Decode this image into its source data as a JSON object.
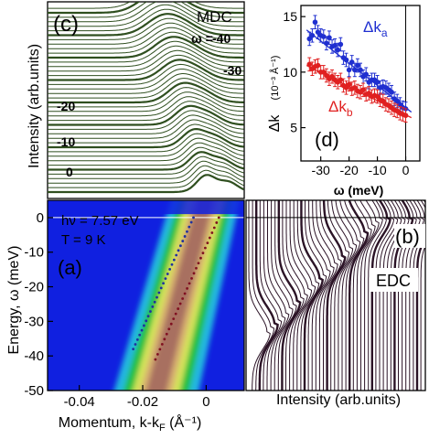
{
  "colors": {
    "mdc_line": "#2f4f1f",
    "edc_line": "#2b1326",
    "dk_a": "#1f2fd0",
    "dk_b": "#e02020",
    "map_peak": "#a87060",
    "map_high": "#d8b070",
    "map_mid": "#d6e45a",
    "map_low": "#20c040",
    "map_edge": "#20b8e0",
    "map_bg": "#1020e0",
    "dots_a": "#2030a0",
    "dots_b": "#801020"
  },
  "chart_data": [
    {
      "id": "c",
      "type": "line",
      "panel_label": "(c)",
      "annotation": "MDC",
      "ylabel": "Intensity (arb.units)",
      "omega_param": "ω =",
      "omega_labels": [
        "-40",
        "-30",
        "-20",
        "-10",
        "0"
      ],
      "curve_count": 42,
      "description_of_x": "Momentum k-kF (shared with panel a)"
    },
    {
      "id": "d",
      "type": "scatter",
      "panel_label": "(d)",
      "xlabel": "ω (meV)",
      "ylabel_main": "Δk",
      "ylabel_unit": "(10⁻³ Å⁻¹)",
      "xlim": [
        -37,
        5
      ],
      "ylim": [
        2,
        16
      ],
      "xticks": [
        -30,
        -20,
        -10,
        0
      ],
      "yticks": [
        5,
        10,
        15
      ],
      "series": [
        {
          "name": "Δka",
          "name_main": "Δk",
          "name_sub": "a",
          "x": [
            -34,
            -33,
            -32,
            -31,
            -30,
            -29,
            -28,
            -27,
            -26,
            -25,
            -24,
            -23,
            -22,
            -21,
            -20,
            -19,
            -18,
            -17,
            -16,
            -15,
            -14,
            -13,
            -12,
            -11,
            -10,
            -9,
            -8,
            -7,
            -6,
            -5,
            -4,
            -3,
            -2,
            -1,
            0
          ],
          "y": [
            13.0,
            13.3,
            14.5,
            13.6,
            13.3,
            13.2,
            12.6,
            13.1,
            12.3,
            12.4,
            12.0,
            12.5,
            11.3,
            11.1,
            10.2,
            10.9,
            10.2,
            10.6,
            10.2,
            9.6,
            9.8,
            9.1,
            9.3,
            9.3,
            9.1,
            8.6,
            8.7,
            8.6,
            8.4,
            8.2,
            7.6,
            7.4,
            7.1,
            6.8,
            6.7
          ],
          "fit": [
            [
              -35,
              13.8
            ],
            [
              2,
              6.4
            ]
          ]
        },
        {
          "name": "Δkb",
          "name_main": "Δk",
          "name_sub": "b",
          "x": [
            -34,
            -33,
            -32,
            -31,
            -30,
            -29,
            -28,
            -27,
            -26,
            -25,
            -24,
            -23,
            -22,
            -21,
            -20,
            -19,
            -18,
            -17,
            -16,
            -15,
            -14,
            -13,
            -12,
            -11,
            -10,
            -9,
            -8,
            -7,
            -6,
            -5,
            -4,
            -3,
            -2,
            -1,
            0
          ],
          "y": [
            10.7,
            10.3,
            10.5,
            10.6,
            10.0,
            10.0,
            9.7,
            9.4,
            9.6,
            9.3,
            9.1,
            9.3,
            8.8,
            8.6,
            8.9,
            8.5,
            8.6,
            8.3,
            8.2,
            8.4,
            8.0,
            8.1,
            7.8,
            7.9,
            7.8,
            7.5,
            7.4,
            7.1,
            7.0,
            6.8,
            6.6,
            6.5,
            6.3,
            6.2,
            6.1
          ],
          "fit": [
            [
              -35,
              10.6
            ],
            [
              2,
              5.9
            ]
          ]
        }
      ]
    },
    {
      "id": "a",
      "type": "heatmap",
      "panel_label": "(a)",
      "photon": "hν = 7.57 eV",
      "temperature": "T = 9 K",
      "xlabel_main": "Momentum, k-k",
      "xlabel_sub": "F",
      "xlabel_unit": " (Å⁻¹)",
      "ylabel": "Energy, ω  (meV)",
      "xlim": [
        -0.05,
        0.012
      ],
      "ylim": [
        -50,
        5
      ],
      "xticks": [
        -0.04,
        -0.02,
        0
      ],
      "xtick_labels": [
        "-0.04",
        "-0.02",
        "0"
      ],
      "yticks": [
        0,
        -10,
        -20,
        -30,
        -40,
        -50
      ],
      "band_center": [
        [
          -0.0165,
          -50
        ],
        [
          0.0,
          0
        ]
      ],
      "dispersion_a": [
        [
          -0.023,
          -38
        ],
        [
          -0.004,
          0
        ]
      ],
      "dispersion_b": [
        [
          -0.016,
          -41
        ],
        [
          0.004,
          0
        ]
      ]
    },
    {
      "id": "b",
      "type": "line",
      "panel_label": "(b)",
      "annotation": "EDC",
      "xlabel": "Intensity (arb.units)",
      "curve_count": 46
    }
  ]
}
